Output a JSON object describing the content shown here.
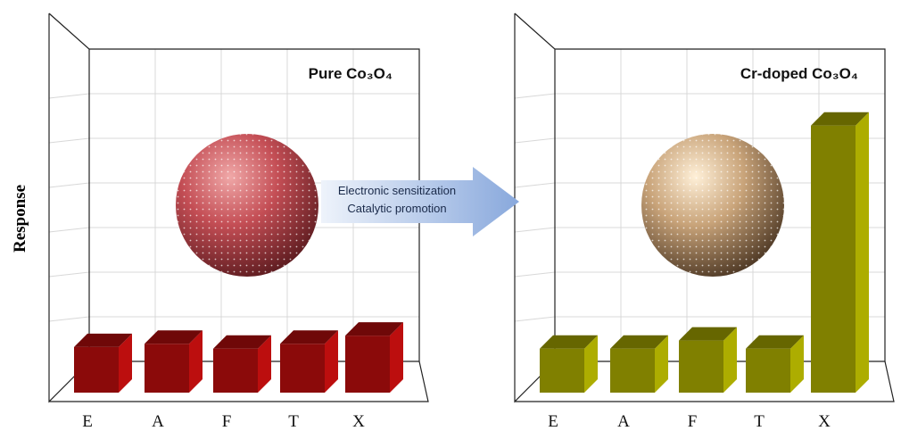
{
  "chart_data": [
    {
      "type": "bar3d",
      "title": "Pure Co₃O₄",
      "ylabel": "Response",
      "categories": [
        "E",
        "A",
        "F",
        "T",
        "X"
      ],
      "values": [
        1.4,
        1.5,
        1.35,
        1.5,
        1.75
      ],
      "color": "#8b0a0a",
      "ylim": [
        0,
        10
      ]
    },
    {
      "type": "bar3d",
      "title": "Cr-doped Co₃O₄",
      "categories": [
        "E",
        "A",
        "F",
        "T",
        "X"
      ],
      "values": [
        1.35,
        1.35,
        1.6,
        1.35,
        8.2
      ],
      "color": "#808000",
      "ylim": [
        0,
        10
      ]
    }
  ],
  "arrow": {
    "lines": [
      "Electronic sensitization",
      "Catalytic promotion"
    ]
  }
}
